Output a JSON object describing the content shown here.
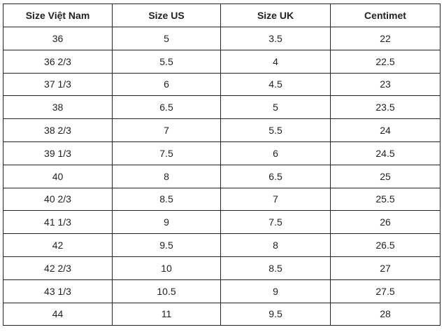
{
  "table": {
    "headers": [
      "Size Việt Nam",
      "Size US",
      "Size UK",
      "Centimet"
    ],
    "rows": [
      [
        "36",
        "5",
        "3.5",
        "22"
      ],
      [
        "36 2/3",
        "5.5",
        "4",
        "22.5"
      ],
      [
        "37 1/3",
        "6",
        "4.5",
        "23"
      ],
      [
        "38",
        "6.5",
        "5",
        "23.5"
      ],
      [
        "38 2/3",
        "7",
        "5.5",
        "24"
      ],
      [
        "39 1/3",
        "7.5",
        "6",
        "24.5"
      ],
      [
        "40",
        "8",
        "6.5",
        "25"
      ],
      [
        "40 2/3",
        "8.5",
        "7",
        "25.5"
      ],
      [
        "41 1/3",
        "9",
        "7.5",
        "26"
      ],
      [
        "42",
        "9.5",
        "8",
        "26.5"
      ],
      [
        "42 2/3",
        "10",
        "8.5",
        "27"
      ],
      [
        "43 1/3",
        "10.5",
        "9",
        "27.5"
      ],
      [
        "44",
        "11",
        "9.5",
        "28"
      ]
    ]
  }
}
